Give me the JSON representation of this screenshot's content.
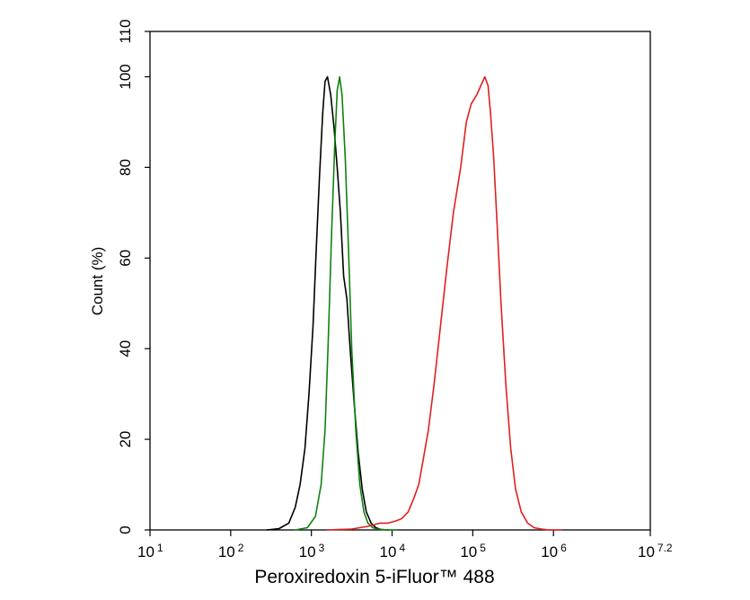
{
  "chart_data": {
    "type": "line",
    "title": "",
    "xlabel": "Peroxiredoxin 5-iFluor™ 488",
    "ylabel": "Count  (%)",
    "x_scale": "log10",
    "xlim": [
      1,
      7.2
    ],
    "ylim": [
      0,
      110
    ],
    "x_tick_labels": [
      {
        "base": "10",
        "exp": "1",
        "value": 1
      },
      {
        "base": "10",
        "exp": "2",
        "value": 2
      },
      {
        "base": "10",
        "exp": "3",
        "value": 3
      },
      {
        "base": "10",
        "exp": "4",
        "value": 4
      },
      {
        "base": "10",
        "exp": "5",
        "value": 5
      },
      {
        "base": "10",
        "exp": "6",
        "value": 6
      },
      {
        "base": "10",
        "exp": "7.2",
        "value": 7.2
      }
    ],
    "y_ticks": [
      0,
      20,
      40,
      60,
      80,
      100,
      110
    ],
    "grid": false,
    "legend": "none",
    "series": [
      {
        "color": "#000000",
        "x_log10": [
          2.45,
          2.6,
          2.72,
          2.8,
          2.86,
          2.92,
          2.97,
          3.02,
          3.06,
          3.1,
          3.14,
          3.17,
          3.2,
          3.24,
          3.28,
          3.32,
          3.36,
          3.4,
          3.44,
          3.48,
          3.53,
          3.58,
          3.63,
          3.68,
          3.74,
          3.8,
          3.86,
          3.95
        ],
        "y": [
          0,
          0.3,
          1.5,
          5,
          10,
          18,
          30,
          45,
          62,
          78,
          92,
          99,
          100,
          96,
          89,
          80,
          70,
          56,
          51,
          40,
          28,
          17,
          9,
          4,
          1.5,
          0.5,
          0.1,
          0
        ]
      },
      {
        "color": "#128012",
        "x_log10": [
          2.8,
          2.95,
          3.05,
          3.12,
          3.17,
          3.21,
          3.25,
          3.29,
          3.32,
          3.35,
          3.38,
          3.42,
          3.46,
          3.5,
          3.55,
          3.6,
          3.65,
          3.7,
          3.76,
          3.82,
          3.88,
          3.95,
          4.05
        ],
        "y": [
          0,
          0.5,
          3,
          10,
          22,
          42,
          65,
          85,
          97,
          100,
          96,
          82,
          62,
          40,
          22,
          10,
          4,
          1.5,
          0.5,
          0.2,
          0.1,
          0,
          0
        ]
      },
      {
        "color": "#e02020",
        "x_log10": [
          3.2,
          3.5,
          3.7,
          3.85,
          3.95,
          4.05,
          4.12,
          4.2,
          4.27,
          4.33,
          4.38,
          4.45,
          4.52,
          4.6,
          4.68,
          4.76,
          4.85,
          4.92,
          4.98,
          5.05,
          5.1,
          5.15,
          5.19,
          5.22,
          5.26,
          5.3,
          5.35,
          5.41,
          5.47,
          5.53,
          5.6,
          5.68,
          5.76,
          5.85,
          5.95,
          6.1
        ],
        "y": [
          0,
          0.2,
          0.8,
          1.5,
          1.5,
          2,
          2.5,
          4,
          7,
          10,
          15,
          22,
          32,
          45,
          58,
          70,
          80,
          90,
          94,
          96,
          98,
          100,
          98,
          92,
          82,
          68,
          50,
          32,
          18,
          9,
          4,
          1.5,
          0.5,
          0.2,
          0,
          0
        ]
      }
    ]
  }
}
